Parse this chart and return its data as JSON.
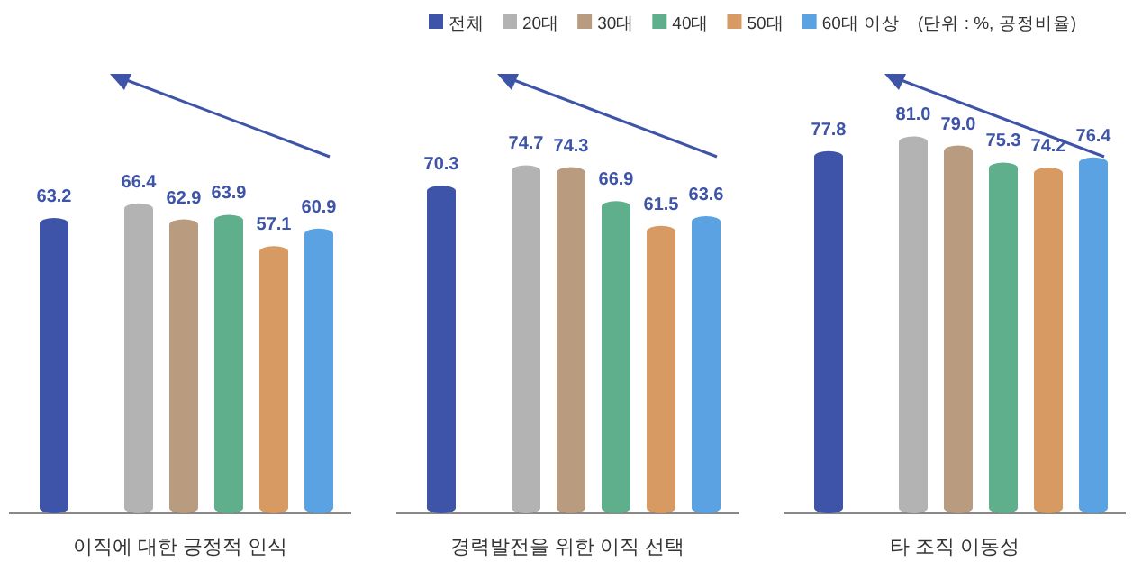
{
  "chart_data": {
    "type": "bar",
    "categories": [
      "이직에 대한 긍정적 인식",
      "경력발전을 위한 이직 선택",
      "타 조직 이동성"
    ],
    "data_labels": true,
    "legend": "top",
    "annotations": [
      "(단위 : %, 공정비율)"
    ],
    "series": [
      {
        "name": "전체",
        "color": "#3d54a8",
        "values": [
          63.2,
          70.3,
          77.8
        ],
        "value_labels": [
          "63.2",
          "70.3",
          "77.8"
        ]
      },
      {
        "name": "20대",
        "color": "#b3b3b3",
        "values": [
          66.4,
          74.7,
          81.0
        ],
        "value_labels": [
          "66.4",
          "74.7",
          "81.0"
        ]
      },
      {
        "name": "30대",
        "color": "#b99b80",
        "values": [
          62.9,
          74.3,
          79.0
        ],
        "value_labels": [
          "62.9",
          "74.3",
          "79.0"
        ]
      },
      {
        "name": "40대",
        "color": "#5fae8c",
        "values": [
          63.9,
          66.9,
          75.3
        ],
        "value_labels": [
          "63.9",
          "66.9",
          "75.3"
        ]
      },
      {
        "name": "50대",
        "color": "#d69a62",
        "values": [
          57.1,
          61.5,
          74.2
        ],
        "value_labels": [
          "57.1",
          "61.5",
          "74.2"
        ]
      },
      {
        "name": "60대 이상",
        "color": "#5aa2e2",
        "values": [
          60.9,
          63.6,
          76.4
        ],
        "value_labels": [
          "60.9",
          "63.6",
          "76.4"
        ]
      }
    ]
  }
}
